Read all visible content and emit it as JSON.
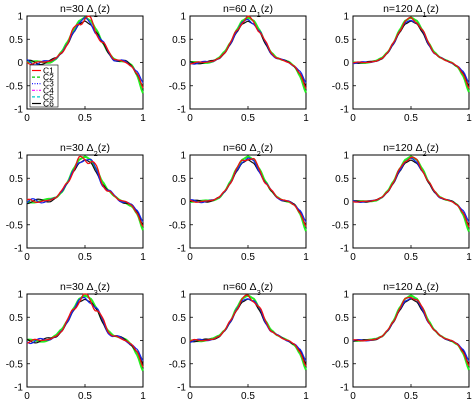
{
  "figure": {
    "rows": 3,
    "cols": 3
  },
  "chart_data": [
    {
      "type": "line",
      "title": "n=30 Δ",
      "title_sub": "1",
      "title_suffix": "(z)",
      "xlim": [
        0,
        1
      ],
      "ylim": [
        -1,
        1
      ],
      "xticks": [
        "0",
        "0.5",
        "1"
      ],
      "yticks": [
        "1",
        "0.5",
        "0",
        "-0.5",
        "-1"
      ],
      "noise": 0.055,
      "legend": true
    },
    {
      "type": "line",
      "title": "n=60 Δ",
      "title_sub": "1",
      "title_suffix": "(z)",
      "xlim": [
        0,
        1
      ],
      "ylim": [
        -1,
        1
      ],
      "xticks": [
        "0",
        "0.5",
        "1"
      ],
      "yticks": [
        "1",
        "0.5",
        "0",
        "-0.5",
        "-1"
      ],
      "noise": 0.03,
      "legend": false
    },
    {
      "type": "line",
      "title": "n=120 Δ",
      "title_sub": "1",
      "title_suffix": "(z)",
      "xlim": [
        0,
        1
      ],
      "ylim": [
        -1,
        1
      ],
      "xticks": [
        "0",
        "0.5",
        "1"
      ],
      "yticks": [
        "1",
        "0.5",
        "0",
        "-0.5",
        "-1"
      ],
      "noise": 0.018,
      "legend": false
    },
    {
      "type": "line",
      "title": "n=30 Δ",
      "title_sub": "2",
      "title_suffix": "(z)",
      "xlim": [
        0,
        1
      ],
      "ylim": [
        -1,
        1
      ],
      "xticks": [
        "0",
        "0.5",
        "1"
      ],
      "yticks": [
        "1",
        "0.5",
        "0",
        "-0.5",
        "-1"
      ],
      "noise": 0.055,
      "legend": false
    },
    {
      "type": "line",
      "title": "n=60 Δ",
      "title_sub": "2",
      "title_suffix": "(z)",
      "xlim": [
        0,
        1
      ],
      "ylim": [
        -1,
        1
      ],
      "xticks": [
        "0",
        "0.5",
        "1"
      ],
      "yticks": [
        "1",
        "0.5",
        "0",
        "-0.5",
        "-1"
      ],
      "noise": 0.03,
      "legend": false
    },
    {
      "type": "line",
      "title": "n=120 Δ",
      "title_sub": "2",
      "title_suffix": "(z)",
      "xlim": [
        0,
        1
      ],
      "ylim": [
        -1,
        1
      ],
      "xticks": [
        "0",
        "0.5",
        "1"
      ],
      "yticks": [
        "1",
        "0.5",
        "0",
        "-0.5",
        "-1"
      ],
      "noise": 0.018,
      "legend": false
    },
    {
      "type": "line",
      "title": "n=30  Δ",
      "title_sub": "3",
      "title_suffix": "(z)",
      "xlim": [
        0,
        1
      ],
      "ylim": [
        -1,
        1
      ],
      "xticks": [
        "0",
        "0.5",
        "1"
      ],
      "yticks": [
        "1",
        "0.5",
        "0",
        "-0.5",
        "-1"
      ],
      "noise": 0.055,
      "legend": false
    },
    {
      "type": "line",
      "title": "n=60  Δ",
      "title_sub": "3",
      "title_suffix": "(z)",
      "xlim": [
        0,
        1
      ],
      "ylim": [
        -1,
        1
      ],
      "xticks": [
        "0",
        "0.5",
        "1"
      ],
      "yticks": [
        "1",
        "0.5",
        "0",
        "-0.5",
        "-1"
      ],
      "noise": 0.03,
      "legend": false
    },
    {
      "type": "line",
      "title": "n=120  Δ",
      "title_sub": "3",
      "title_suffix": "(z)",
      "xlim": [
        0,
        1
      ],
      "ylim": [
        -1,
        1
      ],
      "xticks": [
        "0",
        "0.5",
        "1"
      ],
      "yticks": [
        "1",
        "0.5",
        "0",
        "-0.5",
        "-1"
      ],
      "noise": 0.018,
      "legend": false
    }
  ],
  "legend": {
    "placement": "lower-left",
    "entries": [
      {
        "label": "C1",
        "color": "#ff0000",
        "dash": "solid"
      },
      {
        "label": "C2",
        "color": "#00cc00",
        "dash": "dashed"
      },
      {
        "label": "C3",
        "color": "#0000ff",
        "dash": "dotted"
      },
      {
        "label": "C4",
        "color": "#ff00ff",
        "dash": "dashdot"
      },
      {
        "label": "C5",
        "color": "#00cccc",
        "dash": "dashed"
      },
      {
        "label": "C6",
        "color": "#000000",
        "dash": "solid"
      }
    ]
  },
  "series_styles": [
    {
      "name": "green",
      "color": "#22ee22",
      "width": 2.0
    },
    {
      "name": "black",
      "color": "#111111",
      "width": 1.2
    },
    {
      "name": "blue",
      "color": "#1122ee",
      "width": 1.2
    },
    {
      "name": "red",
      "color": "#ee1111",
      "width": 1.3
    }
  ],
  "target_curve": {
    "z": [
      0.0,
      0.05,
      0.1,
      0.15,
      0.2,
      0.25,
      0.3,
      0.35,
      0.4,
      0.45,
      0.5,
      0.55,
      0.6,
      0.65,
      0.7,
      0.75,
      0.8,
      0.85,
      0.9,
      0.95,
      1.0
    ],
    "value": [
      0.0,
      0.0,
      0.0,
      0.01,
      0.03,
      0.09,
      0.22,
      0.42,
      0.68,
      0.88,
      0.95,
      0.88,
      0.68,
      0.42,
      0.22,
      0.1,
      0.04,
      0.0,
      -0.08,
      -0.25,
      -0.55
    ]
  }
}
